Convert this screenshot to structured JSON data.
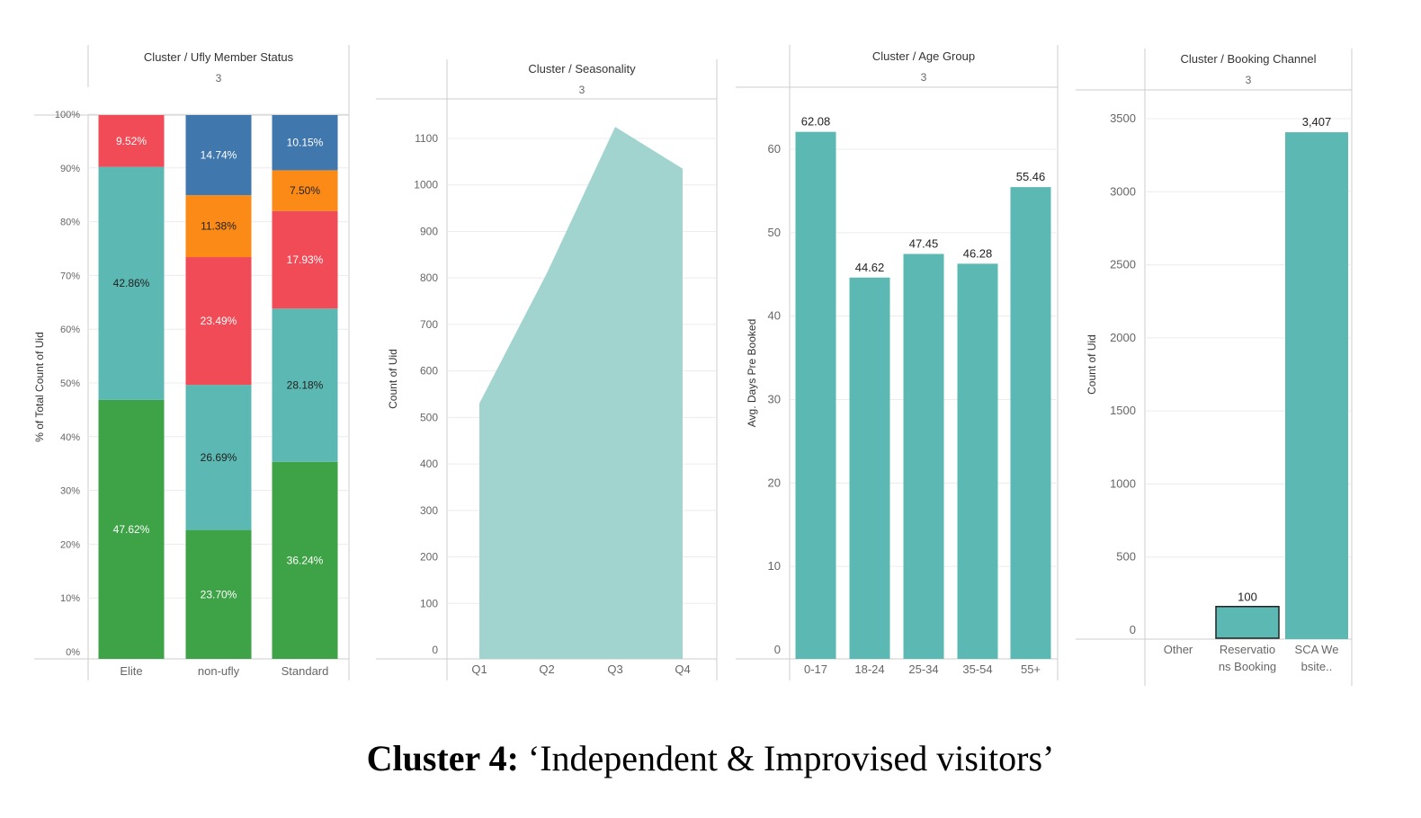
{
  "caption": {
    "label": "Cluster 4:",
    "text": "‘Independent & Improvised visitors’"
  },
  "colors": {
    "green": "#3ea246",
    "teal": "#5cb8b2",
    "red": "#f04b56",
    "blue": "#4077ad",
    "orange": "#fb8a17",
    "area": "#a2d4cf",
    "grid": "#ececec",
    "axis": "#cccccc"
  },
  "chart_data": [
    {
      "type": "bar",
      "stacked": true,
      "title": "Cluster / Ufly Member Status",
      "subtitle": "3",
      "ylabel": "% of Total Count of Uid",
      "ylim": [
        0,
        100
      ],
      "yticks": [
        "0%",
        "10%",
        "20%",
        "30%",
        "40%",
        "50%",
        "60%",
        "70%",
        "80%",
        "90%",
        "100%"
      ],
      "categories": [
        "Elite",
        "non-ufly",
        "Standard"
      ],
      "stacks": [
        [
          {
            "value": 47.62,
            "label": "47.62%",
            "color": "green"
          },
          {
            "value": 42.86,
            "label": "42.86%",
            "color": "teal"
          },
          {
            "value": 9.52,
            "label": "9.52%",
            "color": "red"
          }
        ],
        [
          {
            "value": 23.7,
            "label": "23.70%",
            "color": "green"
          },
          {
            "value": 26.69,
            "label": "26.69%",
            "color": "teal"
          },
          {
            "value": 23.49,
            "label": "23.49%",
            "color": "red"
          },
          {
            "value": 11.38,
            "label": "11.38%",
            "color": "orange"
          },
          {
            "value": 14.74,
            "label": "14.74%",
            "color": "blue"
          }
        ],
        [
          {
            "value": 36.24,
            "label": "36.24%",
            "color": "green"
          },
          {
            "value": 28.18,
            "label": "28.18%",
            "color": "teal"
          },
          {
            "value": 17.93,
            "label": "17.93%",
            "color": "red"
          },
          {
            "value": 7.5,
            "label": "7.50%",
            "color": "orange"
          },
          {
            "value": 10.15,
            "label": "10.15%",
            "color": "blue"
          }
        ]
      ]
    },
    {
      "type": "area",
      "title": "Cluster / Seasonality",
      "subtitle": "3",
      "ylabel": "Count of Uid",
      "ylim": [
        0,
        1150
      ],
      "yticks": [
        0,
        100,
        200,
        300,
        400,
        500,
        600,
        700,
        800,
        900,
        1000,
        1100
      ],
      "x": [
        "Q1",
        "Q2",
        "Q3",
        "Q4"
      ],
      "values": [
        530,
        810,
        1125,
        1035
      ]
    },
    {
      "type": "bar",
      "title": "Cluster / Age Group",
      "subtitle": "3",
      "ylabel": "Avg. Days Pre Booked",
      "ylim": [
        0,
        65
      ],
      "yticks": [
        0,
        10,
        20,
        30,
        40,
        50,
        60
      ],
      "categories": [
        "0-17",
        "18-24",
        "25-34",
        "35-54",
        "55+"
      ],
      "values": [
        62.08,
        44.62,
        47.45,
        46.28,
        55.46
      ],
      "labels": [
        "62.08",
        "44.62",
        "47.45",
        "46.28",
        "55.46"
      ]
    },
    {
      "type": "bar",
      "title": "Cluster / Booking Channel",
      "subtitle": "3",
      "ylabel": "Count of Uid",
      "ylim": [
        0,
        3600
      ],
      "yticks": [
        0,
        500,
        1000,
        1500,
        2000,
        2500,
        3000,
        3500
      ],
      "categories": [
        [
          "Other"
        ],
        [
          "Reservatio",
          "ns Booking"
        ],
        [
          "SCA We",
          "bsite.."
        ]
      ],
      "values": [
        0,
        100,
        3407
      ],
      "labels": [
        "",
        "100",
        "3,407"
      ]
    }
  ]
}
